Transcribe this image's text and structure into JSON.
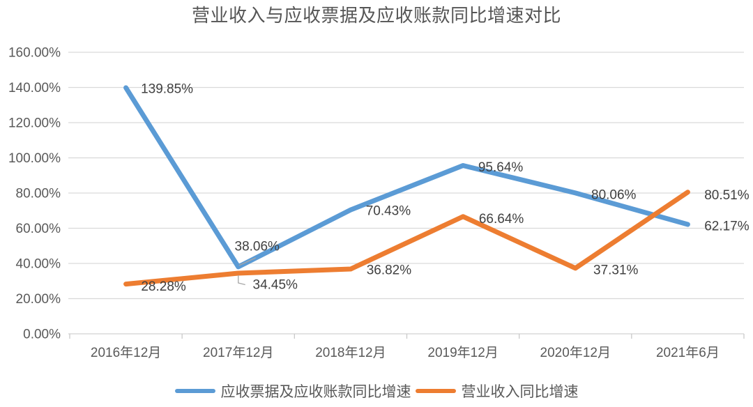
{
  "chart_data": {
    "type": "line",
    "title": "营业收入与应收票据及应收账款同比增速对比",
    "categories": [
      "2016年12月",
      "2017年12月",
      "2018年12月",
      "2019年12月",
      "2020年12月",
      "2021年6月"
    ],
    "series": [
      {
        "name": "应收票据及应收账款同比增速",
        "color": "#5B9BD5",
        "values": [
          139.85,
          38.06,
          70.43,
          95.64,
          80.06,
          62.17
        ],
        "data_labels": [
          "139.85%",
          "38.06%",
          "70.43%",
          "95.64%",
          "80.06%",
          "62.17%"
        ],
        "label_offsets": [
          [
            59,
            1
          ],
          [
            27,
            -30
          ],
          [
            54,
            1
          ],
          [
            54,
            2
          ],
          [
            55,
            2
          ],
          [
            56,
            2
          ]
        ],
        "label_leaders": [
          null,
          "diag",
          null,
          null,
          null,
          null
        ]
      },
      {
        "name": "营业收入同比增速",
        "color": "#ED7D31",
        "values": [
          28.28,
          34.45,
          36.82,
          66.64,
          37.31,
          80.51
        ],
        "data_labels": [
          "28.28%",
          "34.45%",
          "36.82%",
          "66.64%",
          "37.31%",
          "80.51%"
        ],
        "label_offsets": [
          [
            54,
            3
          ],
          [
            53,
            16
          ],
          [
            55,
            1
          ],
          [
            55,
            3
          ],
          [
            58,
            2
          ],
          [
            56,
            4
          ]
        ],
        "label_leaders": [
          null,
          "elbow",
          null,
          null,
          null,
          null
        ]
      }
    ],
    "ylim": [
      0,
      160
    ],
    "ytick_step": 20,
    "ytick_labels": [
      "0.00%",
      "20.00%",
      "40.00%",
      "60.00%",
      "80.00%",
      "100.00%",
      "120.00%",
      "140.00%",
      "160.00%"
    ],
    "grid": true,
    "legend_position": "bottom",
    "colors": {
      "gridline": "#D9D9D9",
      "axis_line": "#D2D2D2",
      "tick": "#C9C9C9",
      "axis_text": "#595959",
      "data_label_text": "#404040",
      "title_text": "#555555",
      "leader_line": "#A6A6A6",
      "background": "#FFFFFF"
    }
  }
}
